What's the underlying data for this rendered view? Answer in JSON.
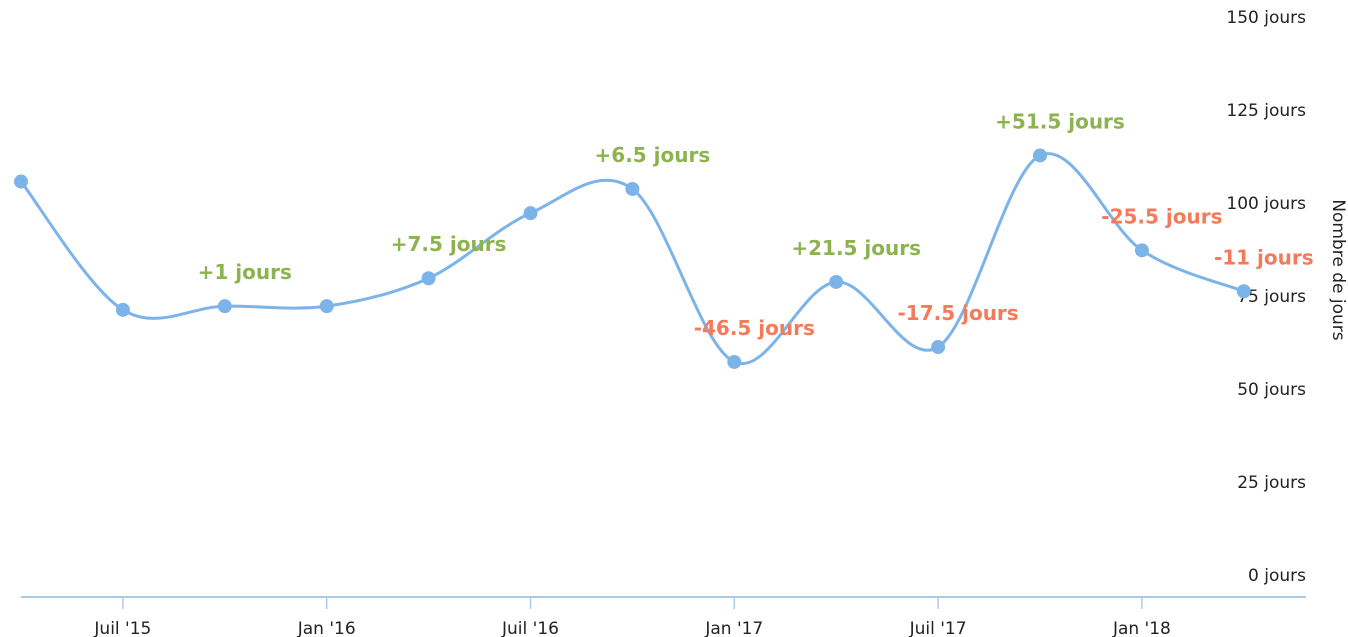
{
  "chart_data": {
    "type": "line",
    "y_axis_title": "Nombre de jours",
    "categories": [
      null,
      "Juil '15",
      null,
      "Jan '16",
      null,
      "Juil '16",
      null,
      "Jan '17",
      null,
      "Juil '17",
      null,
      "Jan '18",
      null
    ],
    "series": [
      {
        "color": "#7cb4e9",
        "values": [
          109,
          74.5,
          75.5,
          75.5,
          83,
          100.5,
          107,
          60.5,
          82,
          64.5,
          116,
          90.5,
          79.5
        ],
        "annotations": [
          null,
          null,
          {
            "text": "+1 jours",
            "color": "#8db34f"
          },
          null,
          {
            "text": "+7.5 jours",
            "color": "#8db34f"
          },
          null,
          {
            "text": "+6.5 jours",
            "color": "#8db34f"
          },
          {
            "text": "-46.5 jours",
            "color": "#f47b5a"
          },
          {
            "text": "+21.5 jours",
            "color": "#8db34f"
          },
          {
            "text": "-17.5 jours",
            "color": "#f47b5a"
          },
          {
            "text": "+51.5 jours",
            "color": "#8db34f"
          },
          {
            "text": "-25.5 jours",
            "color": "#f47b5a"
          },
          {
            "text": "-11 jours",
            "color": "#f47b5a"
          }
        ]
      }
    ],
    "ylim": [
      0,
      150
    ],
    "yticks": [
      {
        "value": 0,
        "label": "0 jours"
      },
      {
        "value": 25,
        "label": "25 jours"
      },
      {
        "value": 50,
        "label": "50 jours"
      },
      {
        "value": 75,
        "label": "75 jours"
      },
      {
        "value": 100,
        "label": "100 jours"
      },
      {
        "value": 125,
        "label": "125 jours"
      },
      {
        "value": 150,
        "label": "150 jours"
      }
    ]
  }
}
